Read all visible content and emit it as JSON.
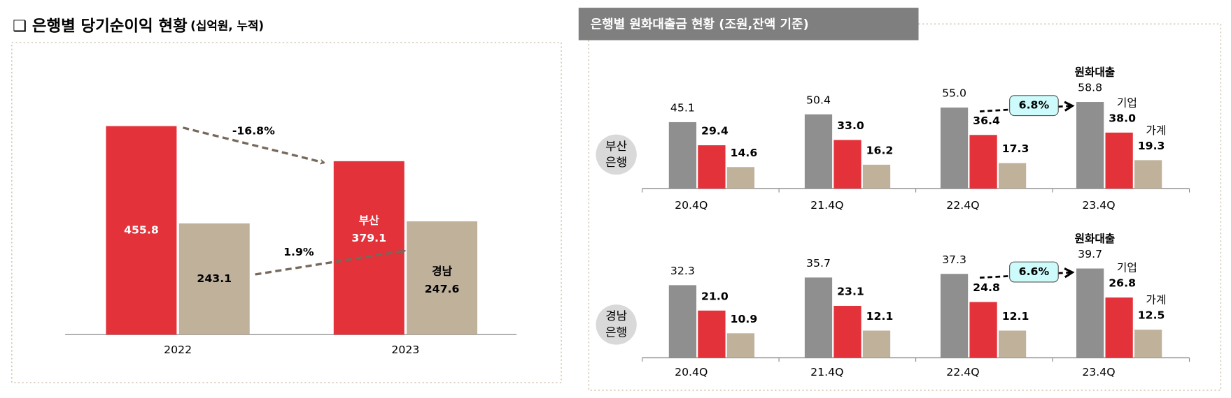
{
  "panel_title": "은행별 원화대출금 현황 (조원,잔액 기준)",
  "chart_data": [
    {
      "type": "bar",
      "title": "❑ 은행별 당기순이익 현황",
      "subtitle": "(십억원, 누적)",
      "categories": [
        "2022",
        "2023"
      ],
      "series": [
        {
          "name": "부산",
          "color": "#e3323a",
          "label_color": "#ffffff",
          "values": [
            455.8,
            379.1
          ]
        },
        {
          "name": "경남",
          "color": "#c0b19b",
          "label_color": "#000000",
          "values": [
            243.1,
            247.6
          ]
        }
      ],
      "annotations": [
        "-16.8%",
        "1.9%"
      ],
      "ylim": [
        0,
        500
      ]
    },
    {
      "type": "bar",
      "label_lines": [
        "부산",
        "은행"
      ],
      "categories": [
        "20.4Q",
        "21.4Q",
        "22.4Q",
        "23.4Q"
      ],
      "series": [
        {
          "name": "원화대출",
          "color": "#8f8f8f",
          "values": [
            45.1,
            50.4,
            55.0,
            58.8
          ],
          "value_labels": [
            "45.1",
            "50.4",
            "55.0",
            "58.8"
          ]
        },
        {
          "name": "기업",
          "color": "#e3323a",
          "values": [
            29.4,
            33.0,
            36.4,
            38.0
          ],
          "value_labels": [
            "29.4",
            "33.0",
            "36.4",
            "38.0"
          ]
        },
        {
          "name": "가계",
          "color": "#c0b19b",
          "values": [
            14.6,
            16.2,
            17.3,
            19.3
          ],
          "value_labels": [
            "14.6",
            "16.2",
            "17.3",
            "19.3"
          ]
        }
      ],
      "annotation": "6.8%",
      "ylim": [
        0,
        70
      ]
    },
    {
      "type": "bar",
      "label_lines": [
        "경남",
        "은행"
      ],
      "categories": [
        "20.4Q",
        "21.4Q",
        "22.4Q",
        "23.4Q"
      ],
      "series": [
        {
          "name": "원화대출",
          "color": "#8f8f8f",
          "values": [
            32.3,
            35.7,
            37.3,
            39.7
          ],
          "value_labels": [
            "32.3",
            "35.7",
            "37.3",
            "39.7"
          ]
        },
        {
          "name": "기업",
          "color": "#e3323a",
          "values": [
            21.0,
            23.1,
            24.8,
            26.8
          ],
          "value_labels": [
            "21.0",
            "23.1",
            "24.8",
            "26.8"
          ]
        },
        {
          "name": "가계",
          "color": "#c0b19b",
          "values": [
            10.9,
            12.1,
            12.1,
            12.5
          ],
          "value_labels": [
            "10.9",
            "12.1",
            "12.1",
            "12.5"
          ]
        }
      ],
      "annotation": "6.6%",
      "ylim": [
        0,
        45
      ]
    }
  ]
}
